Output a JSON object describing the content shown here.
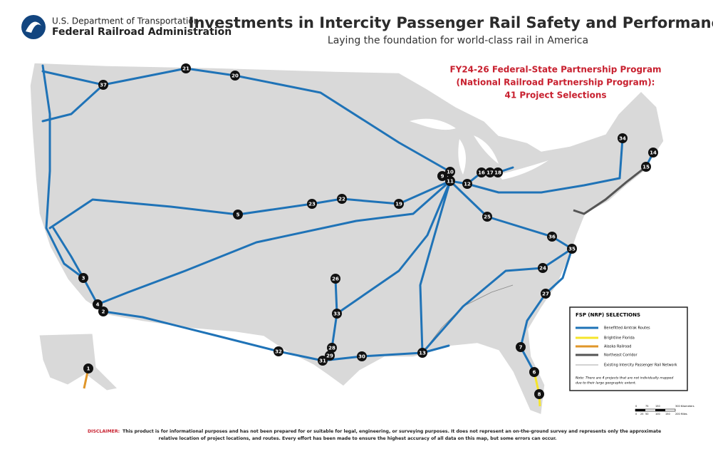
{
  "header": {
    "agency_line1": "U.S. Department of Transportation",
    "agency_line2": "Federal Railroad Administration",
    "title": "Investments in Intercity Passenger Rail Safety and Performance",
    "subtitle": "Laying the foundation for world-class rail in America"
  },
  "program": {
    "lines": [
      "FY24-26 Federal-State Partnership Program",
      "(National Railroad Partnership Program):",
      "41 Project Selections"
    ]
  },
  "markers": [
    {
      "label": "1"
    },
    {
      "label": "2"
    },
    {
      "label": "3"
    },
    {
      "label": "4"
    },
    {
      "label": "5"
    },
    {
      "label": "6"
    },
    {
      "label": "7"
    },
    {
      "label": "8"
    },
    {
      "label": "9"
    },
    {
      "label": "10"
    },
    {
      "label": "11"
    },
    {
      "label": "12"
    },
    {
      "label": "13"
    },
    {
      "label": "14"
    },
    {
      "label": "15"
    },
    {
      "label": "16"
    },
    {
      "label": "17"
    },
    {
      "label": "18"
    },
    {
      "label": "19"
    },
    {
      "label": "20"
    },
    {
      "label": "21"
    },
    {
      "label": "22"
    },
    {
      "label": "23"
    },
    {
      "label": "24"
    },
    {
      "label": "25"
    },
    {
      "label": "26"
    },
    {
      "label": "27"
    },
    {
      "label": "28"
    },
    {
      "label": "29"
    },
    {
      "label": "30"
    },
    {
      "label": "31"
    },
    {
      "label": "32"
    },
    {
      "label": "33"
    },
    {
      "label": "34"
    },
    {
      "label": "35"
    },
    {
      "label": "36"
    },
    {
      "label": "37"
    }
  ],
  "legend": {
    "title": "FSP (NRP) SELECTIONS",
    "items": [
      "Benefitted Amtrak Routes",
      "Brightline Florida",
      "Alaska Railroad",
      "Northeast Corridor",
      "Existing Intercity Passenger Rail Network"
    ],
    "note_lines": [
      "Note: There are 4 projects that are not individually mapped",
      "due to their large geographic extent."
    ]
  },
  "scale": {
    "km_labels": [
      "0",
      "75",
      "150",
      "300 Kilometers"
    ],
    "mi_labels": [
      "0",
      "25",
      "50",
      "100",
      "150",
      "200 Miles"
    ]
  },
  "disclaimer": {
    "label": "DISCLAIMER:",
    "line1": "This product is for informational purposes and has not been prepared for or suitable for legal, engineering, or surveying purposes. It does not represent an on-the-ground survey and represents only the approximate",
    "line2": "relative location of project locations, and routes. Every effort has been made to ensure the highest accuracy of all data on this map, but some errors can occur."
  }
}
